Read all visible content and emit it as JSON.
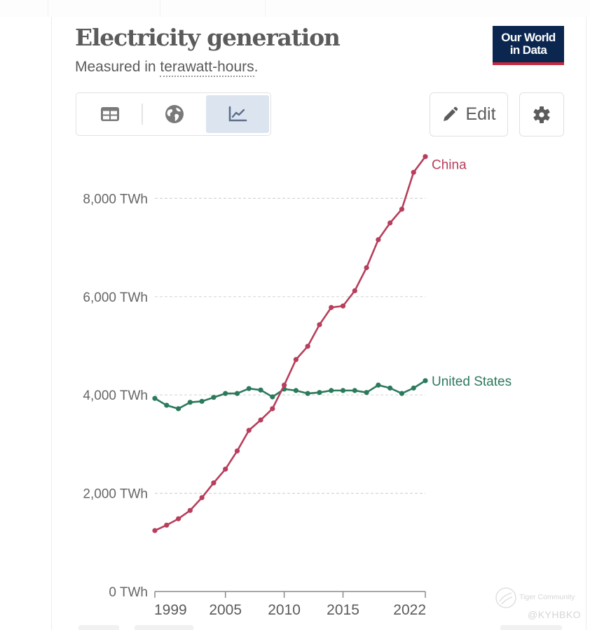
{
  "header": {
    "title": "Electricity generation",
    "subtitle_prefix": "Measured in ",
    "subtitle_unit": "terawatt-hours",
    "subtitle_suffix": ".",
    "logo_line1": "Our World",
    "logo_line2": "in Data"
  },
  "toolbar": {
    "views": [
      {
        "name": "table",
        "icon": "table-icon",
        "active": false
      },
      {
        "name": "map",
        "icon": "globe-icon",
        "active": false
      },
      {
        "name": "chart",
        "icon": "line-chart-icon",
        "active": true
      }
    ],
    "edit_label": "Edit",
    "edit_icon": "pencil-icon",
    "settings_icon": "gear-icon"
  },
  "colors": {
    "china": "#b73e5c",
    "united_states": "#2c7a5c",
    "logo_bg": "#0b2750",
    "logo_accent": "#c8283b",
    "active_view_bg": "#dce5ef"
  },
  "watermark": {
    "brand": "Tiger Community",
    "handle": "@KYHBKO"
  },
  "chart_data": {
    "type": "line",
    "title": "Electricity generation",
    "subtitle": "Measured in terawatt-hours.",
    "xlabel": "",
    "ylabel": "",
    "unit": "TWh",
    "x": [
      1999,
      2000,
      2001,
      2002,
      2003,
      2004,
      2005,
      2006,
      2007,
      2008,
      2009,
      2010,
      2011,
      2012,
      2013,
      2014,
      2015,
      2016,
      2017,
      2018,
      2019,
      2020,
      2021,
      2022
    ],
    "xlim": [
      1999,
      2022
    ],
    "ylim": [
      0,
      9000
    ],
    "x_ticks": [
      1999,
      2005,
      2010,
      2015,
      2022
    ],
    "x_tick_labels": [
      "1999",
      "2005",
      "2010",
      "2015",
      "2022"
    ],
    "y_ticks": [
      0,
      2000,
      4000,
      6000,
      8000
    ],
    "y_tick_labels": [
      "0 TWh",
      "2,000 TWh",
      "4,000 TWh",
      "6,000 TWh",
      "8,000 TWh"
    ],
    "grid": "horizontal-dashed",
    "legend": "inline-right",
    "series": [
      {
        "name": "China",
        "color": "#b73e5c",
        "values": [
          1240,
          1350,
          1480,
          1650,
          1910,
          2210,
          2490,
          2860,
          3280,
          3490,
          3720,
          4200,
          4720,
          4990,
          5430,
          5780,
          5810,
          6120,
          6590,
          7160,
          7500,
          7780,
          8530,
          8850
        ]
      },
      {
        "name": "United States",
        "color": "#2c7a5c",
        "values": [
          3930,
          3790,
          3720,
          3850,
          3870,
          3950,
          4030,
          4030,
          4130,
          4100,
          3960,
          4120,
          4090,
          4030,
          4050,
          4090,
          4090,
          4090,
          4050,
          4200,
          4140,
          4030,
          4140,
          4290
        ]
      }
    ]
  }
}
